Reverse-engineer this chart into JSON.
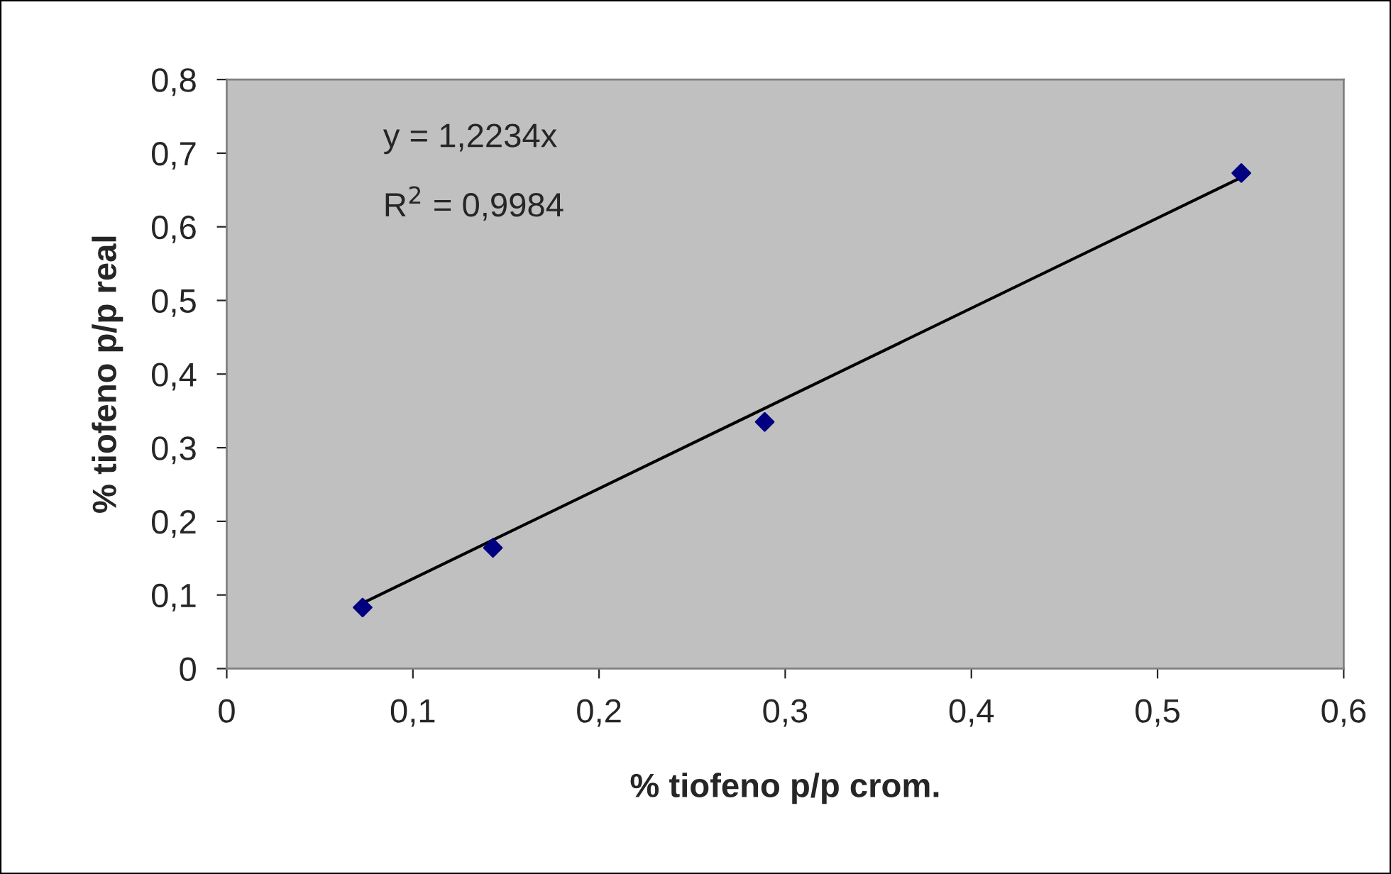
{
  "chart_data": {
    "type": "scatter",
    "xlabel": "% tiofeno p/p crom.",
    "ylabel": "% tiofeno p/p real",
    "annotations": [
      "y = 1,2234x",
      "R$^{2}$ = 0,9984"
    ],
    "series": [
      {
        "color": "#000080",
        "marker": "diamond",
        "x": [
          0.073,
          0.143,
          0.289,
          0.545
        ],
        "values": [
          0.083,
          0.164,
          0.335,
          0.673
        ]
      },
      {
        "type": "line",
        "color": "#000000",
        "marker": "none",
        "x": [
          0.073,
          0.545
        ],
        "values": [
          0.089,
          0.667
        ]
      }
    ],
    "xlim": [
      0,
      0.6
    ],
    "ylim": [
      0,
      0.8
    ],
    "xticks": [
      0,
      {
        "value": 0.1,
        "label": "0,1"
      },
      {
        "value": 0.2,
        "label": "0,2"
      },
      {
        "value": 0.3,
        "label": "0,3"
      },
      {
        "value": 0.4,
        "label": "0,4"
      },
      {
        "value": 0.5,
        "label": "0,5"
      },
      {
        "value": 0.6,
        "label": "0,6"
      }
    ],
    "yticks": [
      0,
      {
        "value": 0.1,
        "label": "0,1"
      },
      {
        "value": 0.2,
        "label": "0,2"
      },
      {
        "value": 0.3,
        "label": "0,3"
      },
      {
        "value": 0.4,
        "label": "0,4"
      },
      {
        "value": 0.5,
        "label": "0,5"
      },
      {
        "value": 0.6,
        "label": "0,6"
      },
      {
        "value": 0.7,
        "label": "0,7"
      },
      {
        "value": 0.8,
        "label": "0,8"
      }
    ],
    "grid": false
  }
}
